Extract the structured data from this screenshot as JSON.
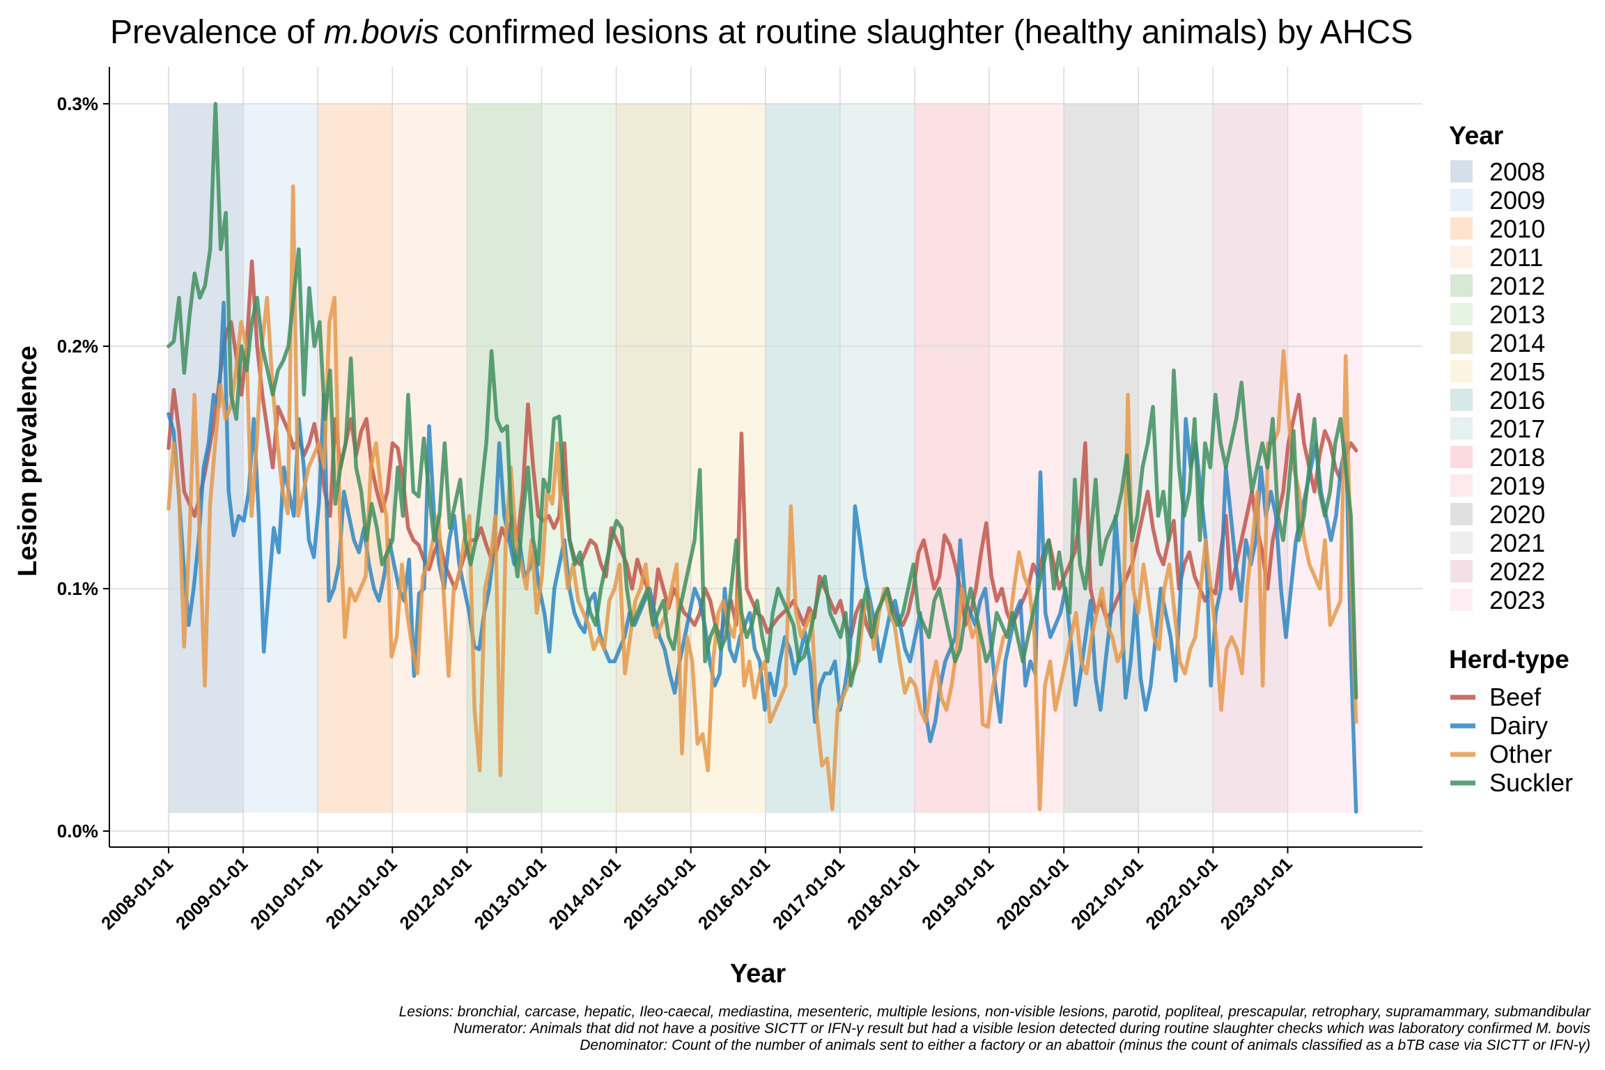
{
  "chart_data": {
    "type": "line",
    "title_parts": [
      "Prevalence of ",
      "m.bovis",
      " confirmed lesions at routine slaughter (healthy animals) by AHCS"
    ],
    "xlabel": "Year",
    "ylabel": "Lesion prevalence",
    "ylim": [
      0,
      0.3
    ],
    "y_ticks": [
      0,
      0.1,
      0.2,
      0.3
    ],
    "y_tick_labels": [
      "0.0%",
      "0.1%",
      "0.2%",
      "0.3%"
    ],
    "x_tick_labels": [
      "2008-01-01",
      "2009-01-01",
      "2010-01-01",
      "2011-01-01",
      "2012-01-01",
      "2013-01-01",
      "2014-01-01",
      "2015-01-01",
      "2016-01-01",
      "2017-01-01",
      "2018-01-01",
      "2019-01-01",
      "2020-01-01",
      "2021-01-01",
      "2022-01-01",
      "2023-01-01"
    ],
    "x_range": [
      "2008-01-01",
      "2023-12-01"
    ],
    "grid": true,
    "year_bands": [
      {
        "year": "2008",
        "color": "#c7d4e3"
      },
      {
        "year": "2009",
        "color": "#deebf7"
      },
      {
        "year": "2010",
        "color": "#fdd9bd"
      },
      {
        "year": "2011",
        "color": "#fdebdc"
      },
      {
        "year": "2012",
        "color": "#c9e0c5"
      },
      {
        "year": "2013",
        "color": "#dcf0da"
      },
      {
        "year": "2014",
        "color": "#e8e0c2"
      },
      {
        "year": "2015",
        "color": "#fbf0d6"
      },
      {
        "year": "2016",
        "color": "#c8e0e0"
      },
      {
        "year": "2017",
        "color": "#dcecea"
      },
      {
        "year": "2018",
        "color": "#f9cfd6"
      },
      {
        "year": "2019",
        "color": "#fde2e6"
      },
      {
        "year": "2020",
        "color": "#d6d6d6"
      },
      {
        "year": "2021",
        "color": "#e8e8e8"
      },
      {
        "year": "2022",
        "color": "#efd4de"
      },
      {
        "year": "2023",
        "color": "#fde7ee"
      }
    ],
    "legend_year_title": "Year",
    "legend_herd_title": "Herd-type",
    "series": [
      {
        "name": "Beef",
        "color": "#c0564b",
        "values": [
          0.158,
          0.182,
          0.165,
          0.14,
          0.135,
          0.13,
          0.138,
          0.148,
          0.16,
          0.172,
          0.19,
          0.205,
          0.21,
          0.196,
          0.18,
          0.2,
          0.235,
          0.2,
          0.18,
          0.165,
          0.15,
          0.175,
          0.17,
          0.165,
          0.158,
          0.162,
          0.155,
          0.16,
          0.168,
          0.155,
          0.14,
          0.13,
          0.17,
          0.15,
          0.16,
          0.17,
          0.155,
          0.165,
          0.17,
          0.15,
          0.14,
          0.132,
          0.14,
          0.16,
          0.158,
          0.145,
          0.125,
          0.12,
          0.118,
          0.112,
          0.108,
          0.115,
          0.12,
          0.11,
          0.105,
          0.1,
          0.108,
          0.115,
          0.12,
          0.12,
          0.125,
          0.118,
          0.112,
          0.116,
          0.125,
          0.12,
          0.13,
          0.12,
          0.14,
          0.176,
          0.15,
          0.13,
          0.128,
          0.13,
          0.125,
          0.13,
          0.16,
          0.12,
          0.112,
          0.11,
          0.115,
          0.12,
          0.118,
          0.11,
          0.105,
          0.125,
          0.12,
          0.115,
          0.11,
          0.1,
          0.112,
          0.105,
          0.1,
          0.09,
          0.108,
          0.1,
          0.092,
          0.1,
          0.095,
          0.09,
          0.088,
          0.085,
          0.09,
          0.1,
          0.095,
          0.085,
          0.08,
          0.09,
          0.095,
          0.085,
          0.164,
          0.1,
          0.095,
          0.09,
          0.088,
          0.082,
          0.085,
          0.088,
          0.09,
          0.092,
          0.095,
          0.09,
          0.085,
          0.092,
          0.088,
          0.105,
          0.1,
          0.095,
          0.09,
          0.095,
          0.085,
          0.08,
          0.09,
          0.095,
          0.085,
          0.08,
          0.09,
          0.095,
          0.1,
          0.092,
          0.088,
          0.085,
          0.09,
          0.1,
          0.115,
          0.12,
          0.11,
          0.1,
          0.105,
          0.122,
          0.118,
          0.11,
          0.1,
          0.085,
          0.09,
          0.1,
          0.115,
          0.127,
          0.105,
          0.095,
          0.1,
          0.09,
          0.085,
          0.09,
          0.095,
          0.1,
          0.11,
          0.105,
          0.115,
          0.12,
          0.11,
          0.1,
          0.105,
          0.11,
          0.115,
          0.13,
          0.16,
          0.1,
          0.09,
          0.095,
          0.088,
          0.09,
          0.095,
          0.1,
          0.105,
          0.11,
          0.12,
          0.13,
          0.14,
          0.125,
          0.115,
          0.11,
          0.12,
          0.128,
          0.1,
          0.11,
          0.115,
          0.105,
          0.1,
          0.095,
          0.1,
          0.098,
          0.115,
          0.13,
          0.1,
          0.11,
          0.12,
          0.13,
          0.14,
          0.125,
          0.115,
          0.1,
          0.12,
          0.13,
          0.14,
          0.16,
          0.17,
          0.18,
          0.16,
          0.15,
          0.14,
          0.155,
          0.165,
          0.16,
          0.15,
          0.145,
          0.155,
          0.16,
          0.157
        ]
      },
      {
        "name": "Dairy",
        "color": "#2e86c1",
        "values": [
          0.172,
          0.165,
          0.14,
          0.11,
          0.085,
          0.1,
          0.12,
          0.15,
          0.16,
          0.18,
          0.175,
          0.218,
          0.14,
          0.122,
          0.13,
          0.128,
          0.14,
          0.17,
          0.13,
          0.074,
          0.1,
          0.125,
          0.115,
          0.15,
          0.14,
          0.13,
          0.17,
          0.15,
          0.12,
          0.113,
          0.135,
          0.18,
          0.095,
          0.1,
          0.11,
          0.14,
          0.13,
          0.12,
          0.115,
          0.125,
          0.11,
          0.1,
          0.095,
          0.105,
          0.12,
          0.11,
          0.1,
          0.095,
          0.112,
          0.064,
          0.098,
          0.1,
          0.167,
          0.13,
          0.11,
          0.1,
          0.12,
          0.13,
          0.11,
          0.1,
          0.09,
          0.076,
          0.075,
          0.09,
          0.1,
          0.118,
          0.16,
          0.13,
          0.12,
          0.11,
          0.12,
          0.105,
          0.108,
          0.115,
          0.1,
          0.09,
          0.074,
          0.1,
          0.11,
          0.12,
          0.1,
          0.09,
          0.085,
          0.082,
          0.095,
          0.098,
          0.082,
          0.075,
          0.07,
          0.07,
          0.075,
          0.08,
          0.09,
          0.085,
          0.09,
          0.095,
          0.1,
          0.09,
          0.08,
          0.075,
          0.065,
          0.057,
          0.07,
          0.08,
          0.09,
          0.1,
          0.095,
          0.085,
          0.07,
          0.06,
          0.065,
          0.1,
          0.075,
          0.07,
          0.08,
          0.085,
          0.09,
          0.075,
          0.07,
          0.05,
          0.065,
          0.056,
          0.07,
          0.08,
          0.075,
          0.065,
          0.073,
          0.082,
          0.07,
          0.045,
          0.06,
          0.065,
          0.065,
          0.07,
          0.05,
          0.06,
          0.075,
          0.134,
          0.12,
          0.105,
          0.095,
          0.085,
          0.07,
          0.08,
          0.09,
          0.095,
          0.085,
          0.075,
          0.07,
          0.08,
          0.09,
          0.05,
          0.037,
          0.045,
          0.06,
          0.07,
          0.075,
          0.08,
          0.12,
          0.095,
          0.09,
          0.085,
          0.095,
          0.1,
          0.08,
          0.06,
          0.045,
          0.07,
          0.08,
          0.09,
          0.095,
          0.06,
          0.07,
          0.065,
          0.148,
          0.09,
          0.08,
          0.085,
          0.09,
          0.1,
          0.08,
          0.052,
          0.065,
          0.08,
          0.095,
          0.063,
          0.05,
          0.07,
          0.088,
          0.13,
          0.1,
          0.055,
          0.07,
          0.095,
          0.063,
          0.05,
          0.06,
          0.08,
          0.1,
          0.09,
          0.08,
          0.062,
          0.1,
          0.17,
          0.15,
          0.16,
          0.14,
          0.12,
          0.06,
          0.09,
          0.1,
          0.15,
          0.13,
          0.11,
          0.095,
          0.12,
          0.11,
          0.12,
          0.15,
          0.13,
          0.14,
          0.13,
          0.1,
          0.08,
          0.1,
          0.12,
          0.13,
          0.14,
          0.15,
          0.16,
          0.14,
          0.13,
          0.12,
          0.13,
          0.15,
          0.16,
          0.07,
          0.008
        ]
      },
      {
        "name": "Other",
        "color": "#e5994a",
        "values": [
          0.133,
          0.16,
          0.14,
          0.076,
          0.12,
          0.18,
          0.12,
          0.06,
          0.135,
          0.16,
          0.184,
          0.17,
          0.175,
          0.19,
          0.21,
          0.2,
          0.13,
          0.16,
          0.2,
          0.22,
          0.185,
          0.16,
          0.14,
          0.131,
          0.266,
          0.13,
          0.14,
          0.15,
          0.155,
          0.16,
          0.15,
          0.21,
          0.22,
          0.131,
          0.08,
          0.1,
          0.095,
          0.1,
          0.105,
          0.15,
          0.16,
          0.14,
          0.13,
          0.072,
          0.08,
          0.11,
          0.09,
          0.075,
          0.065,
          0.105,
          0.11,
          0.12,
          0.13,
          0.1,
          0.064,
          0.1,
          0.105,
          0.12,
          0.13,
          0.05,
          0.025,
          0.1,
          0.11,
          0.13,
          0.023,
          0.12,
          0.15,
          0.12,
          0.11,
          0.1,
          0.12,
          0.09,
          0.105,
          0.14,
          0.135,
          0.16,
          0.12,
          0.1,
          0.11,
          0.095,
          0.09,
          0.085,
          0.075,
          0.08,
          0.075,
          0.095,
          0.1,
          0.11,
          0.065,
          0.08,
          0.095,
          0.1,
          0.11,
          0.09,
          0.08,
          0.085,
          0.09,
          0.1,
          0.11,
          0.032,
          0.08,
          0.07,
          0.036,
          0.04,
          0.025,
          0.07,
          0.09,
          0.095,
          0.085,
          0.08,
          0.1,
          0.06,
          0.07,
          0.055,
          0.065,
          0.07,
          0.045,
          0.05,
          0.055,
          0.06,
          0.134,
          0.09,
          0.08,
          0.085,
          0.09,
          0.048,
          0.027,
          0.03,
          0.009,
          0.05,
          0.055,
          0.06,
          0.065,
          0.07,
          0.09,
          0.095,
          0.075,
          0.09,
          0.1,
          0.09,
          0.085,
          0.07,
          0.057,
          0.063,
          0.06,
          0.05,
          0.045,
          0.06,
          0.07,
          0.055,
          0.05,
          0.06,
          0.075,
          0.1,
          0.09,
          0.08,
          0.085,
          0.044,
          0.043,
          0.06,
          0.07,
          0.08,
          0.082,
          0.1,
          0.115,
          0.105,
          0.1,
          0.08,
          0.009,
          0.06,
          0.07,
          0.05,
          0.06,
          0.07,
          0.08,
          0.09,
          0.07,
          0.065,
          0.08,
          0.09,
          0.1,
          0.085,
          0.08,
          0.07,
          0.075,
          0.18,
          0.1,
          0.09,
          0.11,
          0.095,
          0.08,
          0.075,
          0.1,
          0.11,
          0.09,
          0.07,
          0.065,
          0.075,
          0.08,
          0.1,
          0.12,
          0.1,
          0.08,
          0.05,
          0.075,
          0.08,
          0.075,
          0.065,
          0.1,
          0.12,
          0.14,
          0.06,
          0.16,
          0.16,
          0.165,
          0.198,
          0.17,
          0.15,
          0.14,
          0.12,
          0.11,
          0.105,
          0.1,
          0.12,
          0.085,
          0.09,
          0.095,
          0.196,
          0.11,
          0.045
        ]
      },
      {
        "name": "Suckler",
        "color": "#3f8f5f",
        "values": [
          0.2,
          0.202,
          0.22,
          0.189,
          0.212,
          0.23,
          0.22,
          0.225,
          0.24,
          0.3,
          0.24,
          0.255,
          0.18,
          0.17,
          0.2,
          0.19,
          0.21,
          0.22,
          0.2,
          0.19,
          0.18,
          0.19,
          0.194,
          0.2,
          0.22,
          0.24,
          0.18,
          0.224,
          0.2,
          0.21,
          0.17,
          0.19,
          0.135,
          0.15,
          0.16,
          0.195,
          0.15,
          0.14,
          0.12,
          0.135,
          0.125,
          0.11,
          0.115,
          0.12,
          0.15,
          0.13,
          0.18,
          0.14,
          0.138,
          0.162,
          0.14,
          0.12,
          0.13,
          0.16,
          0.125,
          0.135,
          0.145,
          0.12,
          0.11,
          0.12,
          0.14,
          0.16,
          0.198,
          0.17,
          0.165,
          0.167,
          0.12,
          0.105,
          0.13,
          0.15,
          0.12,
          0.11,
          0.145,
          0.14,
          0.17,
          0.171,
          0.14,
          0.12,
          0.11,
          0.115,
          0.1,
          0.09,
          0.085,
          0.1,
          0.11,
          0.12,
          0.128,
          0.125,
          0.1,
          0.085,
          0.09,
          0.095,
          0.1,
          0.085,
          0.09,
          0.095,
          0.08,
          0.075,
          0.09,
          0.1,
          0.11,
          0.12,
          0.149,
          0.07,
          0.08,
          0.085,
          0.075,
          0.08,
          0.1,
          0.12,
          0.09,
          0.08,
          0.085,
          0.095,
          0.08,
          0.07,
          0.09,
          0.1,
          0.095,
          0.09,
          0.085,
          0.07,
          0.072,
          0.08,
          0.09,
          0.1,
          0.105,
          0.09,
          0.085,
          0.08,
          0.09,
          0.06,
          0.07,
          0.09,
          0.1,
          0.08,
          0.09,
          0.095,
          0.1,
          0.09,
          0.085,
          0.09,
          0.1,
          0.11,
          0.09,
          0.085,
          0.08,
          0.095,
          0.1,
          0.09,
          0.08,
          0.07,
          0.075,
          0.09,
          0.1,
          0.09,
          0.08,
          0.07,
          0.075,
          0.09,
          0.085,
          0.08,
          0.09,
          0.08,
          0.07,
          0.08,
          0.09,
          0.1,
          0.11,
          0.12,
          0.1,
          0.115,
          0.1,
          0.09,
          0.145,
          0.11,
          0.1,
          0.12,
          0.145,
          0.11,
          0.12,
          0.125,
          0.13,
          0.14,
          0.155,
          0.12,
          0.13,
          0.15,
          0.16,
          0.175,
          0.13,
          0.14,
          0.12,
          0.19,
          0.15,
          0.13,
          0.14,
          0.17,
          0.12,
          0.16,
          0.15,
          0.18,
          0.16,
          0.15,
          0.16,
          0.17,
          0.185,
          0.16,
          0.14,
          0.15,
          0.16,
          0.15,
          0.17,
          0.13,
          0.12,
          0.14,
          0.165,
          0.12,
          0.13,
          0.15,
          0.17,
          0.14,
          0.13,
          0.14,
          0.16,
          0.17,
          0.15,
          0.13,
          0.055
        ]
      }
    ],
    "caption_lines": [
      "Lesions: bronchial, carcase, hepatic, Ileo-caecal, mediastina, mesenteric, multiple lesions, non-visible lesions, parotid, popliteal, prescapular, retrophary, supramammary, submandibular",
      "Numerator: Animals that did not have a positive SICTT or IFN-γ result but had a visible lesion detected during routine slaughter checks which was laboratory confirmed M. bovis",
      "Denominator: Count of the number of animals sent to either a factory or an abattoir (minus the count of animals classified as a bTB case via SICTT or IFN-γ)"
    ]
  }
}
